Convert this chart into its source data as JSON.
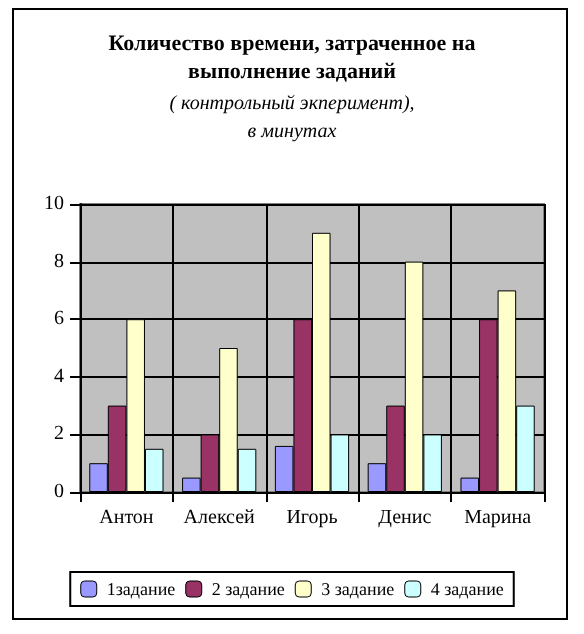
{
  "chart_data": {
    "type": "bar",
    "title": "Количество времени, затраченное на\nвыполнение заданий",
    "subtitle": "( контрольный экперимент),\nв минутах",
    "categories": [
      "Антон",
      "Алексей",
      "Игорь",
      "Денис",
      "Марина"
    ],
    "series": [
      {
        "name": "1задание",
        "color": "#9999ff",
        "values": [
          1,
          0.5,
          1.6,
          1,
          0.5
        ]
      },
      {
        "name": "2 задание",
        "color": "#993366",
        "values": [
          3,
          2,
          6,
          3,
          6
        ]
      },
      {
        "name": "3 задание",
        "color": "#ffffcc",
        "values": [
          6,
          5,
          9,
          8,
          7
        ]
      },
      {
        "name": "4 задание",
        "color": "#ccffff",
        "values": [
          1.5,
          1.5,
          2,
          2,
          3
        ]
      }
    ],
    "ylim": [
      0,
      10
    ],
    "yticks": [
      0,
      2,
      4,
      6,
      8,
      10
    ],
    "grid": true,
    "legend": "bottom"
  }
}
